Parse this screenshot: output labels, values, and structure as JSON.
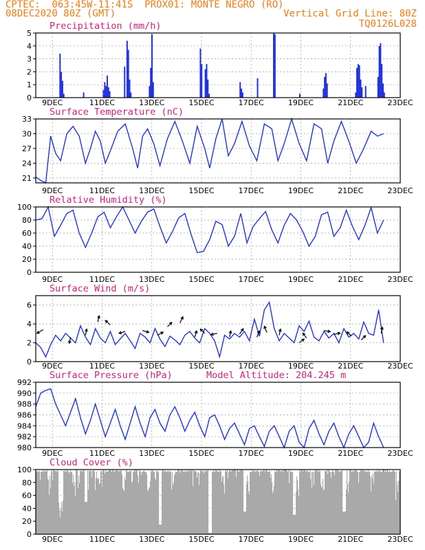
{
  "header": {
    "line1_left": "CPTEC:  063:45W-11:41S  PROX01: MONTE NEGRO (RO)",
    "line2_left": "08DEC2020 80Z (GMT)",
    "line2_right": "Vertical Grid Line: 80Z",
    "line3_right": "TQ0126L028"
  },
  "colors": {
    "header": "#f07c12",
    "title": "#d4207a",
    "line": "#2233dd",
    "cloud": "#a9a9a9",
    "grid": "#999999"
  },
  "x_tick_labels": [
    "9DEC",
    "11DEC",
    "13DEC",
    "15DEC",
    "17DEC",
    "19DEC",
    "21DEC",
    "23DEC"
  ],
  "chart_data": [
    {
      "type": "bar",
      "title": "Precipitation (mm/h)",
      "ylim": [
        0,
        5
      ],
      "yticks": [
        "0",
        "1",
        "2",
        "3",
        "4",
        "5"
      ],
      "x_start": "08DEC 08Z",
      "x_end": "23DEC 00Z",
      "step_hours": 3,
      "bars": [
        {
          "x": 0.95,
          "v": 3.4
        },
        {
          "x": 1.0,
          "v": 2.0
        },
        {
          "x": 1.05,
          "v": 1.3
        },
        {
          "x": 1.1,
          "v": 0.3
        },
        {
          "x": 1.9,
          "v": 0.4
        },
        {
          "x": 2.7,
          "v": 0.6
        },
        {
          "x": 2.75,
          "v": 1.2
        },
        {
          "x": 2.8,
          "v": 0.9
        },
        {
          "x": 2.85,
          "v": 1.7
        },
        {
          "x": 2.9,
          "v": 0.8
        },
        {
          "x": 2.95,
          "v": 0.5
        },
        {
          "x": 3.55,
          "v": 2.4
        },
        {
          "x": 3.65,
          "v": 4.4
        },
        {
          "x": 3.7,
          "v": 3.7
        },
        {
          "x": 3.75,
          "v": 1.4
        },
        {
          "x": 3.8,
          "v": 0.4
        },
        {
          "x": 4.55,
          "v": 0.9
        },
        {
          "x": 4.6,
          "v": 2.3
        },
        {
          "x": 4.65,
          "v": 4.9
        },
        {
          "x": 4.7,
          "v": 1.2
        },
        {
          "x": 6.6,
          "v": 3.8
        },
        {
          "x": 6.65,
          "v": 2.6
        },
        {
          "x": 6.8,
          "v": 2.2
        },
        {
          "x": 6.85,
          "v": 2.6
        },
        {
          "x": 6.9,
          "v": 1.4
        },
        {
          "x": 6.95,
          "v": 0.3
        },
        {
          "x": 8.2,
          "v": 1.2
        },
        {
          "x": 8.25,
          "v": 0.7
        },
        {
          "x": 8.3,
          "v": 0.4
        },
        {
          "x": 8.9,
          "v": 1.5
        },
        {
          "x": 9.55,
          "v": 5.0
        },
        {
          "x": 9.6,
          "v": 4.9
        },
        {
          "x": 10.6,
          "v": 0.3
        },
        {
          "x": 11.55,
          "v": 0.7
        },
        {
          "x": 11.6,
          "v": 1.6
        },
        {
          "x": 11.65,
          "v": 1.9
        },
        {
          "x": 11.7,
          "v": 1.1
        },
        {
          "x": 12.85,
          "v": 0.4
        },
        {
          "x": 12.9,
          "v": 2.3
        },
        {
          "x": 12.95,
          "v": 2.6
        },
        {
          "x": 13.0,
          "v": 2.5
        },
        {
          "x": 13.05,
          "v": 1.4
        },
        {
          "x": 13.1,
          "v": 0.8
        },
        {
          "x": 13.25,
          "v": 0.9
        },
        {
          "x": 13.75,
          "v": 1.6
        },
        {
          "x": 13.8,
          "v": 4.0
        },
        {
          "x": 13.85,
          "v": 4.2
        },
        {
          "x": 13.9,
          "v": 2.6
        },
        {
          "x": 13.95,
          "v": 1.1
        },
        {
          "x": 14.0,
          "v": 0.4
        }
      ]
    },
    {
      "type": "line",
      "title": "Surface Temperature (nC)",
      "ylim": [
        20,
        33
      ],
      "yticks": [
        "21",
        "24",
        "27",
        "30",
        "33"
      ],
      "x": [
        0,
        0.2,
        0.4,
        0.6,
        0.8,
        1.0,
        1.25,
        1.5,
        1.75,
        2.0,
        2.2,
        2.4,
        2.6,
        2.8,
        3.0,
        3.3,
        3.6,
        3.9,
        4.1,
        4.3,
        4.5,
        4.75,
        5.0,
        5.3,
        5.6,
        5.9,
        6.2,
        6.5,
        6.8,
        7.0,
        7.25,
        7.5,
        7.75,
        8.0,
        8.3,
        8.6,
        8.9,
        9.2,
        9.5,
        9.75,
        10.0,
        10.3,
        10.6,
        10.9,
        11.2,
        11.5,
        11.75,
        12.0,
        12.3,
        12.6,
        12.9,
        13.2,
        13.5,
        13.75,
        14.0
      ],
      "values": [
        21.2,
        20.5,
        20.0,
        29.5,
        26.0,
        24.5,
        30.0,
        31.5,
        29.5,
        24.0,
        27.0,
        30.5,
        28.5,
        24.0,
        26.5,
        30.5,
        32.0,
        27.0,
        23.0,
        29.5,
        31.0,
        28.0,
        23.5,
        29.0,
        32.5,
        28.5,
        24.0,
        31.5,
        27.0,
        23.0,
        29.0,
        33.0,
        25.5,
        28.0,
        32.5,
        27.5,
        24.5,
        32.0,
        31.0,
        24.5,
        28.0,
        33.0,
        28.0,
        24.5,
        32.0,
        31.0,
        24.0,
        28.5,
        32.5,
        28.5,
        24.0,
        27.0,
        30.5,
        29.5,
        30.0
      ]
    },
    {
      "type": "line",
      "title": "Relative Humidity (%)",
      "ylim": [
        0,
        100
      ],
      "yticks": [
        "0",
        "20",
        "40",
        "60",
        "80",
        "100"
      ],
      "x": [
        0,
        0.25,
        0.5,
        0.75,
        1.0,
        1.25,
        1.5,
        1.75,
        2.0,
        2.25,
        2.5,
        2.75,
        3.0,
        3.25,
        3.5,
        3.75,
        4.0,
        4.25,
        4.5,
        4.75,
        5.0,
        5.25,
        5.5,
        5.75,
        6.0,
        6.25,
        6.5,
        6.75,
        7.0,
        7.25,
        7.5,
        7.75,
        8.0,
        8.25,
        8.5,
        8.75,
        9.0,
        9.25,
        9.5,
        9.75,
        10.0,
        10.25,
        10.5,
        10.75,
        11.0,
        11.25,
        11.5,
        11.75,
        12.0,
        12.25,
        12.5,
        12.75,
        13.0,
        13.25,
        13.5,
        13.75,
        14.0
      ],
      "values": [
        80,
        82,
        100,
        55,
        72,
        90,
        95,
        60,
        38,
        60,
        85,
        92,
        68,
        85,
        100,
        80,
        60,
        78,
        92,
        97,
        70,
        45,
        62,
        83,
        90,
        58,
        30,
        32,
        50,
        78,
        73,
        40,
        55,
        90,
        45,
        70,
        82,
        93,
        65,
        45,
        72,
        90,
        80,
        62,
        40,
        55,
        88,
        92,
        55,
        68,
        95,
        70,
        50,
        72,
        99,
        60,
        80
      ]
    },
    {
      "type": "line",
      "title": "Surface Wind (m/s)",
      "ylim": [
        0,
        7
      ],
      "yticks": [
        "0",
        "2",
        "4",
        "6"
      ],
      "x": [
        0,
        0.2,
        0.4,
        0.6,
        0.8,
        1.0,
        1.2,
        1.4,
        1.6,
        1.8,
        2.0,
        2.2,
        2.4,
        2.6,
        2.8,
        3.0,
        3.2,
        3.4,
        3.6,
        3.8,
        4.0,
        4.2,
        4.4,
        4.6,
        4.8,
        5.0,
        5.2,
        5.4,
        5.6,
        5.8,
        6.0,
        6.2,
        6.4,
        6.6,
        6.8,
        7.0,
        7.2,
        7.4,
        7.6,
        7.8,
        8.0,
        8.2,
        8.4,
        8.6,
        8.8,
        9.0,
        9.2,
        9.4,
        9.6,
        9.8,
        10.0,
        10.2,
        10.4,
        10.6,
        10.8,
        11.0,
        11.2,
        11.4,
        11.6,
        11.8,
        12.0,
        12.2,
        12.4,
        12.6,
        12.8,
        13.0,
        13.2,
        13.4,
        13.6,
        13.8,
        14.0
      ],
      "values": [
        2.0,
        1.5,
        0.5,
        1.8,
        2.8,
        2.2,
        3.0,
        2.5,
        2.0,
        3.8,
        2.6,
        1.8,
        3.5,
        2.5,
        2.0,
        3.2,
        1.8,
        2.4,
        3.0,
        2.2,
        1.4,
        3.0,
        2.6,
        2.0,
        3.5,
        2.4,
        1.6,
        2.7,
        2.3,
        1.8,
        2.8,
        3.2,
        2.5,
        2.0,
        3.5,
        3.0,
        2.2,
        0.5,
        2.8,
        2.4,
        3.0,
        2.6,
        3.2,
        2.2,
        4.5,
        2.7,
        5.5,
        6.3,
        3.5,
        2.2,
        3.0,
        2.5,
        2.0,
        3.8,
        3.2,
        4.3,
        2.6,
        2.2,
        3.2,
        2.5,
        3.0,
        2.0,
        3.5,
        2.6,
        3.0,
        2.4,
        4.2,
        3.0,
        2.8,
        5.5,
        2.0
      ]
    },
    {
      "type": "line",
      "title": "Surface Pressure (hPa)",
      "annotation": "Model Altitude: 204.245 m",
      "ylim": [
        980,
        992
      ],
      "yticks": [
        "980",
        "982",
        "984",
        "986",
        "988",
        "990",
        "992"
      ],
      "x": [
        0,
        0.2,
        0.4,
        0.6,
        0.8,
        1.0,
        1.2,
        1.4,
        1.6,
        1.8,
        2.0,
        2.2,
        2.4,
        2.6,
        2.8,
        3.0,
        3.2,
        3.4,
        3.6,
        3.8,
        4.0,
        4.2,
        4.4,
        4.6,
        4.8,
        5.0,
        5.2,
        5.4,
        5.6,
        5.8,
        6.0,
        6.2,
        6.4,
        6.6,
        6.8,
        7.0,
        7.2,
        7.4,
        7.6,
        7.8,
        8.0,
        8.2,
        8.4,
        8.6,
        8.8,
        9.0,
        9.2,
        9.4,
        9.6,
        9.8,
        10.0,
        10.2,
        10.4,
        10.6,
        10.8,
        11.0,
        11.2,
        11.4,
        11.6,
        11.8,
        12.0,
        12.2,
        12.4,
        12.6,
        12.8,
        13.0,
        13.2,
        13.4,
        13.6,
        13.8,
        14.0
      ],
      "values": [
        987.5,
        990.0,
        990.5,
        990.8,
        988.0,
        986.0,
        984.0,
        986.5,
        989.0,
        985.5,
        982.5,
        985.0,
        988.0,
        985.0,
        982.0,
        984.5,
        987.0,
        984.0,
        981.5,
        984.5,
        987.5,
        984.5,
        982.0,
        985.5,
        987.0,
        984.5,
        983.0,
        986.0,
        987.5,
        985.5,
        983.0,
        985.0,
        986.5,
        984.0,
        982.0,
        985.5,
        986.0,
        984.0,
        981.5,
        983.5,
        984.5,
        982.5,
        980.5,
        983.5,
        984.0,
        982.0,
        980.2,
        983.0,
        984.0,
        982.0,
        980.0,
        983.0,
        984.0,
        981.0,
        980.0,
        983.5,
        985.0,
        982.5,
        980.5,
        983.0,
        984.5,
        982.0,
        980.0,
        982.5,
        984.0,
        982.0,
        980.0,
        981.0,
        984.5,
        982.0,
        980.0
      ]
    },
    {
      "type": "bar",
      "title": "Cloud Cover (%)",
      "ylim": [
        0,
        100
      ],
      "yticks": [
        "0",
        "20",
        "40",
        "60",
        "80",
        "100"
      ]
    }
  ]
}
